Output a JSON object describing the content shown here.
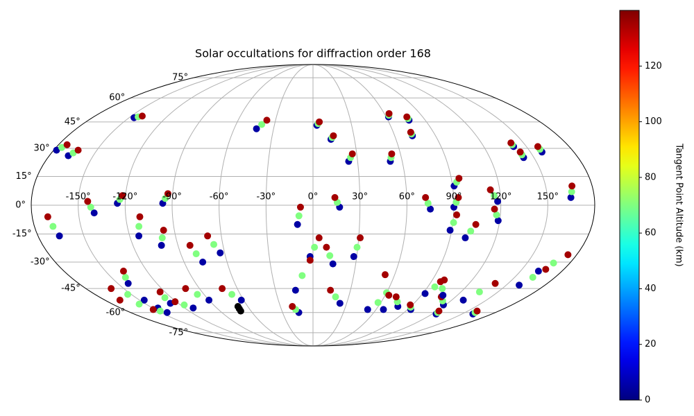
{
  "chart_data": {
    "type": "scatter",
    "projection": "mollweide",
    "title": "Solar occultations for diffraction order 168",
    "colorbar_label": "Tangent Point Altitude (km)",
    "colormap": "jet",
    "grid": true,
    "xlim": [
      -180,
      180
    ],
    "ylim": [
      -90,
      90
    ],
    "clim": [
      0,
      140
    ],
    "cticks": [
      0,
      20,
      40,
      60,
      80,
      100,
      120
    ],
    "xticks": [
      {
        "value": -150,
        "label": "-150°"
      },
      {
        "value": -120,
        "label": "-120°"
      },
      {
        "value": -90,
        "label": "-90°"
      },
      {
        "value": -60,
        "label": "-60°"
      },
      {
        "value": -30,
        "label": "-30°"
      },
      {
        "value": 0,
        "label": "0°"
      },
      {
        "value": 30,
        "label": "30°"
      },
      {
        "value": 60,
        "label": "60°"
      },
      {
        "value": 90,
        "label": "90°"
      },
      {
        "value": 120,
        "label": "120°"
      },
      {
        "value": 150,
        "label": "150°"
      }
    ],
    "yticks": [
      {
        "value": -75,
        "label": "-75°"
      },
      {
        "value": -60,
        "label": "-60°"
      },
      {
        "value": -45,
        "label": "-45°"
      },
      {
        "value": -30,
        "label": "-30°"
      },
      {
        "value": -15,
        "label": "-15°"
      },
      {
        "value": 0,
        "label": "0°"
      },
      {
        "value": 15,
        "label": "15°"
      },
      {
        "value": 30,
        "label": "30°"
      },
      {
        "value": 45,
        "label": "45°"
      },
      {
        "value": 60,
        "label": "60°"
      },
      {
        "value": 75,
        "label": "75°"
      }
    ],
    "x": [
      -146,
      -143.5,
      -141,
      -178,
      -176,
      -174,
      -167,
      -165,
      -163,
      -43,
      -40,
      -37,
      3,
      4,
      5,
      13,
      14,
      15,
      24,
      25.5,
      27,
      62,
      63,
      64,
      77,
      77,
      77,
      73,
      73,
      73,
      52,
      53,
      54,
      141,
      141,
      141,
      143,
      143,
      143,
      158,
      158,
      158,
      -140,
      -142,
      -144,
      -125,
      -123.5,
      -122,
      -96,
      -94.5,
      -93,
      -166,
      -168,
      -170,
      -114,
      -112.5,
      -111,
      -101,
      -99,
      -97,
      -142,
      -139.5,
      -137,
      -77,
      -79.5,
      -82,
      -63,
      -66,
      -69,
      -10,
      -9,
      -8,
      -2,
      1,
      4,
      14,
      11.5,
      9,
      17,
      15.5,
      14,
      -14,
      -8,
      -2,
      28,
      29.5,
      31,
      24,
      19,
      14,
      -14,
      -16.5,
      -19,
      91,
      93,
      95,
      90,
      91.5,
      93,
      89,
      90.5,
      92,
      100,
      102.5,
      105,
      119,
      117.5,
      116,
      118,
      116,
      114,
      165,
      166,
      167,
      75,
      73.5,
      72,
      163,
      168.5,
      174,
      160,
      163.5,
      167,
      130,
      135,
      140,
      92,
      95.5,
      99,
      67,
      60,
      53,
      52,
      57.5,
      63,
      78,
      74,
      70,
      93,
      90.5,
      88,
      124,
      123,
      122,
      161,
      160,
      159,
      118,
      113,
      108,
      108,
      102.5,
      97,
      -146,
      -153,
      -160,
      -145,
      -156,
      -167,
      -144,
      -148,
      -152,
      -127,
      -125.5,
      -124,
      -112,
      -116.5,
      -121,
      -90,
      -95.5,
      -101,
      -62,
      -67,
      -72,
      -70,
      -69.5,
      -69
    ],
    "y": [
      47.5,
      48,
      48.5,
      29,
      30.5,
      32,
      26,
      27.5,
      29,
      41,
      43.5,
      46,
      43,
      44,
      45,
      35,
      36,
      37,
      23,
      25,
      27,
      48,
      49,
      50,
      46,
      47,
      48,
      37,
      38,
      39,
      23,
      25,
      27,
      31,
      32,
      33,
      25,
      26.5,
      28,
      28,
      29.5,
      31,
      -4,
      -1,
      2,
      1,
      3,
      5,
      1,
      3.5,
      6,
      -16,
      -11,
      -6,
      -16,
      -11,
      -6,
      -21,
      -17,
      -13,
      -42,
      -38.5,
      -35,
      -30,
      -25.5,
      -21,
      -25,
      -20.5,
      -16,
      -10,
      -5.5,
      -1,
      -27,
      -22,
      -17,
      -31,
      -26.5,
      -22,
      -1,
      1.5,
      4,
      -46,
      -37.5,
      -29,
      -27,
      -22,
      -17,
      -54,
      -50,
      -46,
      -60,
      -58,
      -56,
      10,
      12,
      14,
      -1,
      1.5,
      4,
      -13,
      -9,
      -5,
      -17,
      -13.5,
      -10,
      -8,
      -5,
      -2,
      2,
      5,
      8,
      4,
      7,
      10,
      -2,
      1,
      4,
      -35,
      -30.5,
      -26,
      -43,
      -38.5,
      -34,
      -52,
      -47,
      -42,
      -48,
      -44,
      -40,
      -58,
      -47.5,
      -37,
      -58,
      -53.5,
      -49,
      -56,
      -53,
      -50,
      -58,
      -56.5,
      -55,
      -61,
      -60,
      -59,
      -61,
      -60,
      -59,
      -55,
      -52.5,
      -50,
      -49,
      -45,
      -41,
      -52,
      -48.5,
      -45,
      -57,
      -54.5,
      -52,
      -60,
      -59,
      -58,
      -54,
      -50.5,
      -47,
      -57,
      -55,
      -53,
      -52,
      -48.5,
      -45,
      -52,
      -48.5,
      -45,
      -59,
      -57.5,
      -56
    ],
    "c": [
      5,
      70,
      135,
      5,
      70,
      135,
      5,
      70,
      135,
      5,
      70,
      135,
      5,
      70,
      135,
      5,
      70,
      135,
      5,
      70,
      135,
      5,
      70,
      135,
      5,
      70,
      135,
      5,
      70,
      135,
      5,
      70,
      135,
      5,
      70,
      135,
      5,
      70,
      135,
      5,
      70,
      135,
      5,
      70,
      135,
      5,
      70,
      135,
      5,
      70,
      135,
      5,
      70,
      135,
      5,
      70,
      135,
      5,
      70,
      135,
      5,
      70,
      135,
      5,
      70,
      135,
      5,
      70,
      135,
      5,
      70,
      135,
      5,
      70,
      135,
      5,
      70,
      135,
      5,
      70,
      135,
      5,
      70,
      135,
      5,
      70,
      135,
      5,
      70,
      135,
      5,
      70,
      135,
      5,
      70,
      135,
      5,
      70,
      135,
      5,
      70,
      135,
      5,
      70,
      135,
      5,
      70,
      135,
      5,
      70,
      135,
      5,
      70,
      135,
      5,
      70,
      135,
      5,
      70,
      135,
      5,
      70,
      135,
      5,
      70,
      135,
      5,
      70,
      135,
      5,
      70,
      135,
      5,
      70,
      135,
      5,
      70,
      135,
      5,
      70,
      135,
      5,
      70,
      135,
      5,
      70,
      135,
      5,
      70,
      135,
      5,
      70,
      135,
      5,
      70,
      135,
      5,
      70,
      135,
      5,
      70,
      135,
      5,
      70,
      135,
      5,
      70,
      135,
      5,
      70,
      135,
      5,
      70,
      135
    ]
  }
}
